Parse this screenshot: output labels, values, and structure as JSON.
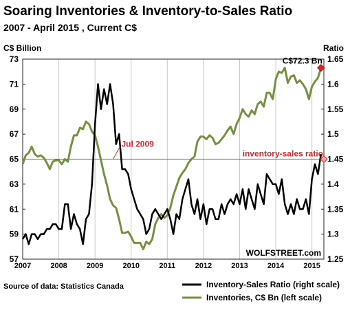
{
  "chart_data": {
    "type": "line",
    "title": "Soaring Inventories & Inventory-to-Sales Ratio",
    "subtitle": "2007 - April 2015 , Current C$",
    "ylabel_left": "C$ Billion",
    "ylabel_right": "Ratio",
    "ylim_left": [
      57,
      73
    ],
    "ylim_right": [
      1.25,
      1.65
    ],
    "yticks_left": [
      "57",
      "59",
      "61",
      "63",
      "65",
      "67",
      "69",
      "71",
      "73"
    ],
    "yticks_right": [
      "1.25",
      "1.3",
      "1.35",
      "1.4",
      "1.45",
      "1.5",
      "1.55",
      "1.6",
      "1.65"
    ],
    "xticks": [
      "2007",
      "2008",
      "2009",
      "2010",
      "2011",
      "2012",
      "2013",
      "2014",
      "2015"
    ],
    "grid": "vertical",
    "legend_position": "bottom-right",
    "source": "Source of data: Statistics Canada",
    "watermark": "WOLFSTREET.com",
    "annotations": {
      "endpoint": "C$72.3 Bn",
      "jul2009": "Jul 2009",
      "ratio_line": "inventory-sales ratio"
    },
    "series": [
      {
        "name": "Inventory-Sales Ratio (right scale)",
        "axis": "right",
        "color": "#000000",
        "x": [
          2007.0,
          2007.083,
          2007.167,
          2007.25,
          2007.333,
          2007.417,
          2007.5,
          2007.583,
          2007.667,
          2007.75,
          2007.833,
          2007.917,
          2008.0,
          2008.083,
          2008.167,
          2008.25,
          2008.333,
          2008.417,
          2008.5,
          2008.583,
          2008.667,
          2008.75,
          2008.833,
          2008.917,
          2009.0,
          2009.083,
          2009.167,
          2009.25,
          2009.333,
          2009.417,
          2009.5,
          2009.583,
          2009.667,
          2009.75,
          2009.833,
          2009.917,
          2010.0,
          2010.083,
          2010.167,
          2010.25,
          2010.333,
          2010.417,
          2010.5,
          2010.583,
          2010.667,
          2010.75,
          2010.833,
          2010.917,
          2011.0,
          2011.083,
          2011.167,
          2011.25,
          2011.333,
          2011.417,
          2011.5,
          2011.583,
          2011.667,
          2011.75,
          2011.833,
          2011.917,
          2012.0,
          2012.083,
          2012.167,
          2012.25,
          2012.333,
          2012.417,
          2012.5,
          2012.583,
          2012.667,
          2012.75,
          2012.833,
          2012.917,
          2013.0,
          2013.083,
          2013.167,
          2013.25,
          2013.333,
          2013.417,
          2013.5,
          2013.583,
          2013.667,
          2013.75,
          2013.833,
          2013.917,
          2014.0,
          2014.083,
          2014.167,
          2014.25,
          2014.333,
          2014.417,
          2014.5,
          2014.583,
          2014.667,
          2014.75,
          2014.833,
          2014.917,
          2015.0,
          2015.083,
          2015.167,
          2015.25
        ],
        "values": [
          1.29,
          1.3,
          1.28,
          1.3,
          1.3,
          1.29,
          1.3,
          1.3,
          1.31,
          1.31,
          1.32,
          1.32,
          1.31,
          1.31,
          1.36,
          1.36,
          1.31,
          1.34,
          1.32,
          1.31,
          1.28,
          1.33,
          1.34,
          1.4,
          1.52,
          1.6,
          1.55,
          1.59,
          1.56,
          1.6,
          1.56,
          1.48,
          1.5,
          1.43,
          1.43,
          1.42,
          1.39,
          1.37,
          1.35,
          1.34,
          1.33,
          1.3,
          1.31,
          1.34,
          1.35,
          1.34,
          1.33,
          1.34,
          1.35,
          1.33,
          1.3,
          1.34,
          1.33,
          1.37,
          1.39,
          1.41,
          1.36,
          1.34,
          1.37,
          1.33,
          1.36,
          1.32,
          1.35,
          1.35,
          1.33,
          1.33,
          1.36,
          1.34,
          1.36,
          1.37,
          1.36,
          1.38,
          1.36,
          1.39,
          1.35,
          1.39,
          1.37,
          1.35,
          1.4,
          1.38,
          1.36,
          1.42,
          1.41,
          1.4,
          1.4,
          1.38,
          1.41,
          1.36,
          1.34,
          1.36,
          1.34,
          1.37,
          1.35,
          1.35,
          1.37,
          1.34,
          1.41,
          1.44,
          1.42,
          1.46
        ]
      },
      {
        "name": "Inventories, C$ Bn (left scale)",
        "axis": "left",
        "color": "#769042",
        "x": [
          2007.0,
          2007.083,
          2007.167,
          2007.25,
          2007.333,
          2007.417,
          2007.5,
          2007.583,
          2007.667,
          2007.75,
          2007.833,
          2007.917,
          2008.0,
          2008.083,
          2008.167,
          2008.25,
          2008.333,
          2008.417,
          2008.5,
          2008.583,
          2008.667,
          2008.75,
          2008.833,
          2008.917,
          2009.0,
          2009.083,
          2009.167,
          2009.25,
          2009.333,
          2009.417,
          2009.5,
          2009.583,
          2009.667,
          2009.75,
          2009.833,
          2009.917,
          2010.0,
          2010.083,
          2010.167,
          2010.25,
          2010.333,
          2010.417,
          2010.5,
          2010.583,
          2010.667,
          2010.75,
          2010.833,
          2010.917,
          2011.0,
          2011.083,
          2011.167,
          2011.25,
          2011.333,
          2011.417,
          2011.5,
          2011.583,
          2011.667,
          2011.75,
          2011.833,
          2011.917,
          2012.0,
          2012.083,
          2012.167,
          2012.25,
          2012.333,
          2012.417,
          2012.5,
          2012.583,
          2012.667,
          2012.75,
          2012.833,
          2012.917,
          2013.0,
          2013.083,
          2013.167,
          2013.25,
          2013.333,
          2013.417,
          2013.5,
          2013.583,
          2013.667,
          2013.75,
          2013.833,
          2013.917,
          2014.0,
          2014.083,
          2014.167,
          2014.25,
          2014.333,
          2014.417,
          2014.5,
          2014.583,
          2014.667,
          2014.75,
          2014.833,
          2014.917,
          2015.0,
          2015.083,
          2015.167,
          2015.25
        ],
        "values": [
          64.6,
          65.3,
          65.5,
          66.0,
          65.4,
          65.2,
          65.3,
          65.1,
          64.7,
          64.2,
          64.8,
          64.9,
          64.9,
          64.6,
          65.0,
          64.8,
          66.0,
          66.9,
          66.9,
          67.5,
          67.4,
          68.0,
          67.8,
          67.2,
          66.9,
          66.0,
          64.9,
          63.8,
          62.9,
          61.8,
          61.3,
          61.1,
          60.2,
          59.1,
          59.1,
          59.2,
          58.8,
          58.3,
          58.3,
          58.3,
          57.8,
          58.4,
          58.2,
          58.6,
          59.8,
          60.3,
          60.6,
          60.3,
          60.5,
          61.1,
          62.1,
          62.8,
          63.5,
          63.9,
          64.2,
          64.7,
          65.0,
          65.2,
          66.4,
          66.8,
          66.8,
          66.6,
          66.9,
          66.7,
          66.2,
          66.3,
          66.6,
          66.9,
          67.3,
          67.6,
          67.0,
          67.8,
          68.3,
          69.0,
          68.6,
          68.4,
          68.9,
          68.6,
          69.4,
          69.6,
          69.2,
          70.3,
          70.3,
          69.8,
          71.4,
          72.0,
          71.9,
          72.3,
          71.1,
          71.6,
          71.7,
          71.1,
          71.3,
          71.0,
          70.6,
          69.8,
          70.8,
          71.2,
          71.5,
          72.3
        ]
      }
    ]
  },
  "legend": {
    "ratio_label": "Inventory-Sales Ratio (right scale)",
    "inventories_label": "Inventories, C$ Bn (left scale)"
  }
}
